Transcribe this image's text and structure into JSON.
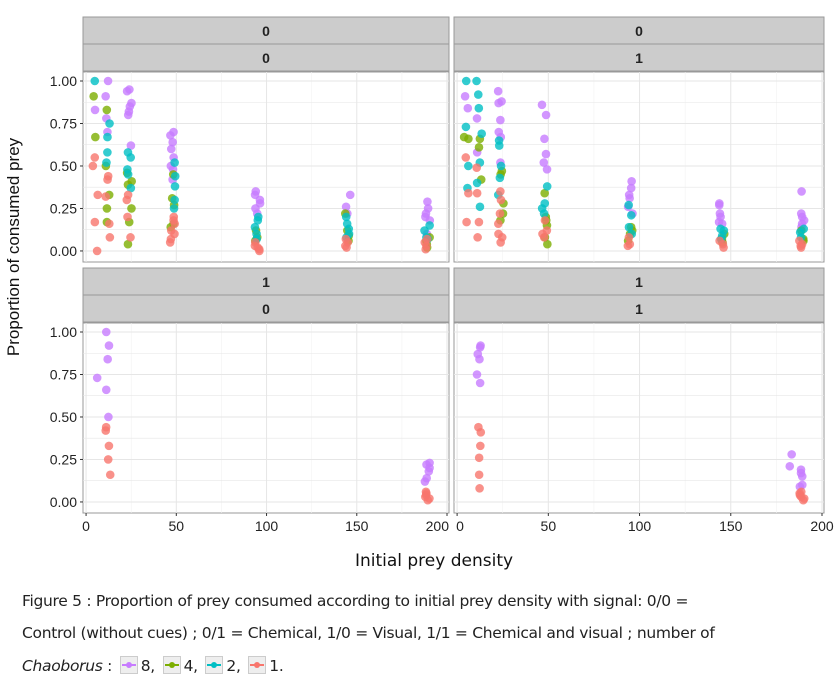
{
  "chart_data": {
    "type": "scatter",
    "xlabel": "Initial prey density",
    "ylabel": "Proportion of consumed prey",
    "xlim": [
      -1.7,
      201.1
    ],
    "ylim": [
      -0.065,
      1.053
    ],
    "xticks": [
      "0",
      "50",
      "100",
      "150",
      "200"
    ],
    "yticks": [
      "0.00",
      "0.25",
      "0.50",
      "0.75",
      "1.00"
    ],
    "grid": true,
    "colors": {
      "8": "#C77CFF",
      "4": "#7CAE00",
      "2": "#00BFC4",
      "1": "#F8766D"
    },
    "panels": [
      {
        "strip_top": "0",
        "strip_bottom": "0",
        "series": {
          "2": [
            [
              5,
              [
                1.0
              ]
            ],
            [
              12,
              [
                0.75,
                0.67,
                0.58,
                0.52
              ]
            ],
            [
              24,
              [
                0.58,
                0.55,
                0.48,
                0.45,
                0.37
              ]
            ],
            [
              48,
              [
                0.52,
                0.44,
                0.38,
                0.3,
                0.25
              ]
            ],
            [
              95,
              [
                0.2,
                0.18,
                0.14,
                0.1,
                0.07
              ]
            ],
            [
              145,
              [
                0.2,
                0.16,
                0.13,
                0.1,
                0.08
              ]
            ],
            [
              189,
              [
                0.15,
                0.12,
                0.08,
                0.07
              ]
            ]
          ],
          "8": [
            [
              5,
              [
                0.83
              ]
            ],
            [
              12,
              [
                1.0,
                0.91,
                0.78,
                0.7
              ]
            ],
            [
              24,
              [
                0.95,
                0.94,
                0.87,
                0.85,
                0.82,
                0.8,
                0.62
              ]
            ],
            [
              48,
              [
                0.7,
                0.68,
                0.64,
                0.6,
                0.55,
                0.5,
                0.48,
                0.42
              ]
            ],
            [
              95,
              [
                0.35,
                0.33,
                0.3,
                0.28,
                0.25,
                0.22
              ]
            ],
            [
              145,
              [
                0.33,
                0.26,
                0.22
              ]
            ],
            [
              189,
              [
                0.29,
                0.25,
                0.22,
                0.2,
                0.18,
                0.1
              ]
            ]
          ],
          "4": [
            [
              5,
              [
                0.91,
                0.67
              ]
            ],
            [
              12,
              [
                0.83,
                0.5,
                0.33,
                0.25,
                0.17
              ]
            ],
            [
              24,
              [
                0.46,
                0.41,
                0.39,
                0.25,
                0.17,
                0.04
              ]
            ],
            [
              48,
              [
                0.45,
                0.31,
                0.27,
                0.16,
                0.14
              ]
            ],
            [
              95,
              [
                0.12,
                0.08,
                0.06
              ]
            ],
            [
              145,
              [
                0.22,
                0.12,
                0.09,
                0.06
              ]
            ],
            [
              189,
              [
                0.08,
                0.06,
                0.04,
                0.02
              ]
            ]
          ],
          "1": [
            [
              5,
              [
                0.55,
                0.5,
                0.33,
                0.17,
                0.0
              ]
            ],
            [
              12,
              [
                0.44,
                0.42,
                0.32,
                0.16,
                0.08
              ]
            ],
            [
              24,
              [
                0.33,
                0.3,
                0.2,
                0.08
              ]
            ],
            [
              48,
              [
                0.2,
                0.18,
                0.16,
                0.12,
                0.1,
                0.07,
                0.05
              ]
            ],
            [
              95,
              [
                0.05,
                0.03,
                0.02,
                0.01,
                0.0
              ]
            ],
            [
              145,
              [
                0.07,
                0.05,
                0.03,
                0.02
              ]
            ],
            [
              189,
              [
                0.07,
                0.05,
                0.03,
                0.01
              ]
            ]
          ]
        }
      },
      {
        "strip_top": "0",
        "strip_bottom": "1",
        "series": {
          "2": [
            [
              5,
              [
                1.0,
                0.73,
                0.5,
                0.37
              ]
            ],
            [
              12,
              [
                1.0,
                0.92,
                0.84,
                0.69,
                0.52,
                0.4,
                0.26
              ]
            ],
            [
              24,
              [
                0.65,
                0.62,
                0.5,
                0.43,
                0.33
              ]
            ],
            [
              48,
              [
                0.38,
                0.28,
                0.25,
                0.22
              ]
            ],
            [
              95,
              [
                0.27,
                0.21,
                0.14,
                0.1
              ]
            ],
            [
              145,
              [
                0.13,
                0.12,
                0.09,
                0.07
              ]
            ],
            [
              189,
              [
                0.13,
                0.11,
                0.08
              ]
            ]
          ],
          "8": [
            [
              5,
              [
                0.91,
                0.84
              ]
            ],
            [
              12,
              [
                0.78,
                0.58
              ]
            ],
            [
              24,
              [
                0.94,
                0.88,
                0.87,
                0.77,
                0.7,
                0.67,
                0.52
              ]
            ],
            [
              48,
              [
                0.86,
                0.8,
                0.66,
                0.57,
                0.52,
                0.48
              ]
            ],
            [
              95,
              [
                0.41,
                0.37,
                0.33,
                0.31,
                0.26,
                0.22
              ]
            ],
            [
              145,
              [
                0.28,
                0.27,
                0.22,
                0.2,
                0.17,
                0.16
              ]
            ],
            [
              189,
              [
                0.35,
                0.22,
                0.2,
                0.18,
                0.16,
                0.14
              ]
            ]
          ],
          "4": [
            [
              5,
              [
                0.67,
                0.66
              ]
            ],
            [
              12,
              [
                0.66,
                0.61,
                0.42
              ]
            ],
            [
              24,
              [
                0.47,
                0.45,
                0.28,
                0.22,
                0.18
              ]
            ],
            [
              48,
              [
                0.34,
                0.2,
                0.18,
                0.15,
                0.08,
                0.04
              ]
            ],
            [
              95,
              [
                0.14,
                0.12,
                0.1,
                0.06
              ]
            ],
            [
              145,
              [
                0.1,
                0.07,
                0.05
              ]
            ],
            [
              189,
              [
                0.12,
                0.07,
                0.06
              ]
            ]
          ],
          "1": [
            [
              5,
              [
                0.55,
                0.34,
                0.17
              ]
            ],
            [
              12,
              [
                0.49,
                0.34,
                0.17,
                0.08
              ]
            ],
            [
              24,
              [
                0.35,
                0.3,
                0.22,
                0.16,
                0.1,
                0.08,
                0.05
              ]
            ],
            [
              48,
              [
                0.18,
                0.12,
                0.1,
                0.08
              ]
            ],
            [
              95,
              [
                0.08,
                0.04,
                0.03
              ]
            ],
            [
              145,
              [
                0.06,
                0.04,
                0.02
              ]
            ],
            [
              189,
              [
                0.06,
                0.04,
                0.03,
                0.02
              ]
            ]
          ]
        }
      },
      {
        "strip_top": "1",
        "strip_bottom": "0",
        "series": {
          "8": [
            [
              12,
              [
                1.0,
                0.92,
                0.84,
                0.66,
                0.5
              ]
            ],
            [
              5,
              [
                0.73
              ]
            ],
            [
              189,
              [
                0.23,
                0.22,
                0.2,
                0.18,
                0.14,
                0.12
              ]
            ]
          ],
          "1": [
            [
              12,
              [
                0.44,
                0.42,
                0.33,
                0.25,
                0.16
              ]
            ],
            [
              189,
              [
                0.06,
                0.05,
                0.04,
                0.03,
                0.02,
                0.01
              ]
            ]
          ]
        }
      },
      {
        "strip_top": "1",
        "strip_bottom": "1",
        "series": {
          "8": [
            [
              12,
              [
                0.92,
                0.91,
                0.87,
                0.84,
                0.75,
                0.7
              ]
            ],
            [
              182,
              [
                0.28,
                0.21
              ]
            ],
            [
              189,
              [
                0.19,
                0.17,
                0.15,
                0.1,
                0.09
              ]
            ]
          ],
          "1": [
            [
              12,
              [
                0.44,
                0.41,
                0.33,
                0.26,
                0.16,
                0.08
              ]
            ],
            [
              189,
              [
                0.06,
                0.05,
                0.04,
                0.03,
                0.02,
                0.01
              ]
            ]
          ]
        }
      }
    ]
  },
  "caption": {
    "line1": "Figure 5 : Proportion of prey consumed according to initial prey density with signal: 0/0 =",
    "line2": "Control (without cues) ;  0/1 = Chemical, 1/0 = Visual, 1/1 = Chemical and visual ; number of",
    "genus": "Chaoborus",
    "colon": " :",
    "legend": [
      {
        "key": "8",
        "label": "8,"
      },
      {
        "key": "4",
        "label": "4,"
      },
      {
        "key": "2",
        "label": "2,"
      },
      {
        "key": "1",
        "label": "1."
      }
    ]
  }
}
